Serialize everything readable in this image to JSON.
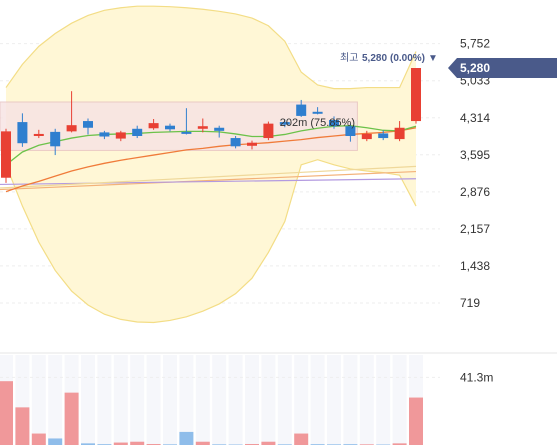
{
  "chart_data": {
    "type": "candlestick",
    "price_axis": {
      "ticks": [
        "5,752",
        "5,033",
        "4,314",
        "3,595",
        "2,876",
        "2,157",
        "1,438",
        "719"
      ],
      "tick_values": [
        5752,
        5033,
        4314,
        3595,
        2876,
        2157,
        1438,
        719
      ],
      "range": [
        0,
        6600
      ]
    },
    "volume_axis": {
      "ticks": [
        "41.3m"
      ],
      "tick_values": [
        41.3
      ],
      "range": [
        0,
        55
      ]
    },
    "current_price": {
      "label": "5,280",
      "value": 5280
    },
    "high_marker": {
      "prefix": "최고",
      "value": "5,280",
      "pct": "(0.00%)",
      "arrow": "▼"
    },
    "annotation": {
      "text": "202m (75.85%)"
    },
    "range_box": {
      "from_index": 0,
      "to_index": 21,
      "low": 3680,
      "high": 4620
    },
    "candles": [
      {
        "o": 4050,
        "h": 4100,
        "l": 3050,
        "c": 3150,
        "dir": "down"
      },
      {
        "o": 3820,
        "h": 4400,
        "l": 3750,
        "c": 4230,
        "dir": "up"
      },
      {
        "o": 4000,
        "h": 4080,
        "l": 3920,
        "c": 3960,
        "dir": "down"
      },
      {
        "o": 3760,
        "h": 4100,
        "l": 3590,
        "c": 4040,
        "dir": "up"
      },
      {
        "o": 4170,
        "h": 4830,
        "l": 4030,
        "c": 4050,
        "dir": "down"
      },
      {
        "o": 4120,
        "h": 4300,
        "l": 3990,
        "c": 4250,
        "dir": "up"
      },
      {
        "o": 3950,
        "h": 4060,
        "l": 3900,
        "c": 4030,
        "dir": "up"
      },
      {
        "o": 4030,
        "h": 4060,
        "l": 3860,
        "c": 3910,
        "dir": "down"
      },
      {
        "o": 3960,
        "h": 4160,
        "l": 3920,
        "c": 4100,
        "dir": "up"
      },
      {
        "o": 4210,
        "h": 4290,
        "l": 4080,
        "c": 4110,
        "dir": "down"
      },
      {
        "o": 4090,
        "h": 4200,
        "l": 4050,
        "c": 4160,
        "dir": "up"
      },
      {
        "o": 4010,
        "h": 4500,
        "l": 3990,
        "c": 4040,
        "dir": "up"
      },
      {
        "o": 4150,
        "h": 4300,
        "l": 4030,
        "c": 4100,
        "dir": "down"
      },
      {
        "o": 4060,
        "h": 4160,
        "l": 3930,
        "c": 4120,
        "dir": "up"
      },
      {
        "o": 3920,
        "h": 3960,
        "l": 3720,
        "c": 3760,
        "dir": "up"
      },
      {
        "o": 3770,
        "h": 3870,
        "l": 3700,
        "c": 3830,
        "dir": "down"
      },
      {
        "o": 3920,
        "h": 4240,
        "l": 3880,
        "c": 4200,
        "dir": "down"
      },
      {
        "o": 4180,
        "h": 4280,
        "l": 4130,
        "c": 4230,
        "dir": "up"
      },
      {
        "o": 4570,
        "h": 4660,
        "l": 4330,
        "c": 4350,
        "dir": "up"
      },
      {
        "o": 4430,
        "h": 4520,
        "l": 4380,
        "c": 4400,
        "dir": "up"
      },
      {
        "o": 4270,
        "h": 4340,
        "l": 4100,
        "c": 4150,
        "dir": "up"
      },
      {
        "o": 4150,
        "h": 4200,
        "l": 3850,
        "c": 3960,
        "dir": "up"
      },
      {
        "o": 4000,
        "h": 4060,
        "l": 3860,
        "c": 3900,
        "dir": "down"
      },
      {
        "o": 4010,
        "h": 4070,
        "l": 3880,
        "c": 3920,
        "dir": "up"
      },
      {
        "o": 3900,
        "h": 4250,
        "l": 3860,
        "c": 4120,
        "dir": "down"
      },
      {
        "o": 4250,
        "h": 5280,
        "l": 4200,
        "c": 5280,
        "dir": "down"
      }
    ],
    "volume": [
      {
        "v": 39,
        "dir": "down"
      },
      {
        "v": 23,
        "dir": "down"
      },
      {
        "v": 7,
        "dir": "down"
      },
      {
        "v": 4,
        "dir": "up"
      },
      {
        "v": 32,
        "dir": "down"
      },
      {
        "v": 1,
        "dir": "up"
      },
      {
        "v": 0.5,
        "dir": "up"
      },
      {
        "v": 1.5,
        "dir": "down"
      },
      {
        "v": 2,
        "dir": "down"
      },
      {
        "v": 0.6,
        "dir": "down"
      },
      {
        "v": 0.4,
        "dir": "up"
      },
      {
        "v": 8,
        "dir": "up"
      },
      {
        "v": 2,
        "dir": "down"
      },
      {
        "v": 0.4,
        "dir": "up"
      },
      {
        "v": 0.3,
        "dir": "up"
      },
      {
        "v": 0.6,
        "dir": "down"
      },
      {
        "v": 2,
        "dir": "down"
      },
      {
        "v": 0.4,
        "dir": "up"
      },
      {
        "v": 7,
        "dir": "down"
      },
      {
        "v": 0.5,
        "dir": "up"
      },
      {
        "v": 0.4,
        "dir": "up"
      },
      {
        "v": 0.5,
        "dir": "up"
      },
      {
        "v": 0.4,
        "dir": "down"
      },
      {
        "v": 0.3,
        "dir": "up"
      },
      {
        "v": 1,
        "dir": "down"
      },
      {
        "v": 29,
        "dir": "down"
      }
    ],
    "ma_short": [
      3400,
      3650,
      3780,
      3850,
      3920,
      3970,
      3990,
      4000,
      4010,
      4030,
      4040,
      4050,
      4050,
      4040,
      4000,
      3950,
      3950,
      3990,
      4060,
      4110,
      4150,
      4160,
      4120,
      4070,
      4060,
      4150
    ],
    "ma_long": [
      2880,
      2990,
      3080,
      3180,
      3280,
      3360,
      3430,
      3490,
      3540,
      3590,
      3640,
      3690,
      3720,
      3760,
      3790,
      3810,
      3830,
      3860,
      3890,
      3930,
      3960,
      3990,
      4010,
      4030,
      4060,
      4120
    ],
    "lines": [
      {
        "role": "line-orange-flat",
        "from": 2920,
        "to": 3270
      },
      {
        "role": "line-purple-flat",
        "from": 3020,
        "to": 3130
      },
      {
        "role": "line-gold-flat",
        "from": 2950,
        "to": 3370
      }
    ],
    "band_upper": [
      4900,
      5350,
      5700,
      5950,
      6150,
      6300,
      6400,
      6450,
      6480,
      6480,
      6470,
      6450,
      6420,
      6380,
      6330,
      6250,
      6100,
      5800,
      5200,
      4950,
      4880,
      4880,
      4900,
      4900,
      4900,
      5600
    ],
    "band_lower": [
      3400,
      2600,
      1900,
      1350,
      950,
      680,
      500,
      400,
      350,
      340,
      380,
      450,
      560,
      700,
      900,
      1200,
      1700,
      2300,
      3400,
      3500,
      3400,
      3320,
      3280,
      3250,
      3200,
      2600
    ],
    "colors": {
      "up": "#e84033",
      "down": "#2f7fcf",
      "up_volume": "#f0989a",
      "down_volume": "#8fbdea",
      "ma_short": "#6cc24a",
      "ma_long": "#f07b3a",
      "band_fill": "#fff7d6",
      "band_stroke": "#f3dd86",
      "range_box_fill": "#f7e4e4",
      "range_box_stroke": "#e7c2c2",
      "badge": "#4a5a8a"
    }
  }
}
